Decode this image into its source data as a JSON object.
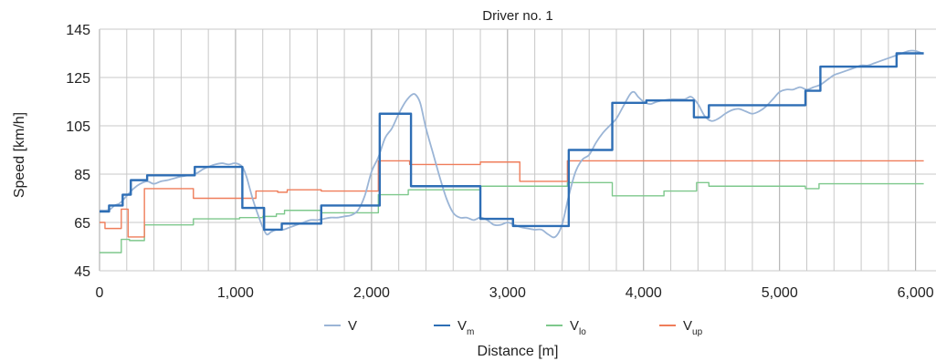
{
  "chart_data": {
    "type": "line",
    "title": "Driver no. 1",
    "xlabel": "Distance [m]",
    "ylabel": "Speed [km/h]",
    "xlim": [
      0,
      6150
    ],
    "ylim": [
      45,
      145
    ],
    "x_ticks": [
      0,
      1000,
      2000,
      3000,
      4000,
      5000,
      6000
    ],
    "x_tick_labels": [
      "0",
      "1,000",
      "2,000",
      "3,000",
      "4,000",
      "5,000",
      "6,000"
    ],
    "y_ticks": [
      45,
      65,
      85,
      105,
      125,
      145
    ],
    "y_tick_labels": [
      "45",
      "65",
      "85",
      "105",
      "125",
      "145"
    ],
    "grid": {
      "x_step": 200,
      "y_step": 20,
      "major_x_step": 1000
    },
    "legend_position": "bottom",
    "colors": {
      "V": "#9bb5d6",
      "Vm": "#2e6eb5",
      "Vlo": "#7ec88c",
      "Vup": "#ef7d5a",
      "grid": "#c8c8c8",
      "grid_major": "#a6a6a6"
    },
    "series": [
      {
        "name": "V",
        "sub": "",
        "style": "smooth",
        "points": [
          [
            0,
            70
          ],
          [
            50,
            70
          ],
          [
            80,
            70.5
          ],
          [
            110,
            72
          ],
          [
            150,
            73
          ],
          [
            200,
            76
          ],
          [
            250,
            79
          ],
          [
            300,
            81
          ],
          [
            350,
            82
          ],
          [
            400,
            81
          ],
          [
            450,
            82
          ],
          [
            500,
            82.5
          ],
          [
            600,
            84
          ],
          [
            700,
            85
          ],
          [
            760,
            87
          ],
          [
            800,
            88
          ],
          [
            850,
            89
          ],
          [
            900,
            89.5
          ],
          [
            950,
            89
          ],
          [
            1000,
            89.5
          ],
          [
            1050,
            88
          ],
          [
            1080,
            84
          ],
          [
            1100,
            80
          ],
          [
            1130,
            74
          ],
          [
            1160,
            69
          ],
          [
            1200,
            63
          ],
          [
            1230,
            60
          ],
          [
            1260,
            61
          ],
          [
            1300,
            62
          ],
          [
            1350,
            62
          ],
          [
            1400,
            63
          ],
          [
            1450,
            64
          ],
          [
            1500,
            65
          ],
          [
            1550,
            66
          ],
          [
            1600,
            66
          ],
          [
            1650,
            66.5
          ],
          [
            1700,
            67
          ],
          [
            1750,
            67
          ],
          [
            1800,
            67.5
          ],
          [
            1850,
            68
          ],
          [
            1900,
            70
          ],
          [
            1950,
            76
          ],
          [
            2000,
            86
          ],
          [
            2050,
            92
          ],
          [
            2100,
            100
          ],
          [
            2150,
            104
          ],
          [
            2200,
            110
          ],
          [
            2250,
            115
          ],
          [
            2300,
            118
          ],
          [
            2330,
            117.5
          ],
          [
            2360,
            114
          ],
          [
            2400,
            104
          ],
          [
            2450,
            94
          ],
          [
            2500,
            84
          ],
          [
            2550,
            75
          ],
          [
            2600,
            69
          ],
          [
            2650,
            67
          ],
          [
            2700,
            67
          ],
          [
            2750,
            66
          ],
          [
            2800,
            67
          ],
          [
            2850,
            66
          ],
          [
            2900,
            64
          ],
          [
            2950,
            64
          ],
          [
            3000,
            65
          ],
          [
            3050,
            64
          ],
          [
            3100,
            63
          ],
          [
            3150,
            62.5
          ],
          [
            3200,
            62
          ],
          [
            3250,
            62
          ],
          [
            3300,
            60
          ],
          [
            3350,
            59
          ],
          [
            3400,
            64
          ],
          [
            3450,
            76
          ],
          [
            3500,
            86
          ],
          [
            3550,
            91
          ],
          [
            3600,
            93
          ],
          [
            3650,
            98
          ],
          [
            3700,
            102
          ],
          [
            3750,
            105
          ],
          [
            3800,
            108
          ],
          [
            3850,
            113
          ],
          [
            3900,
            118
          ],
          [
            3930,
            119
          ],
          [
            3960,
            117
          ],
          [
            4000,
            115
          ],
          [
            4050,
            114
          ],
          [
            4100,
            115
          ],
          [
            4200,
            116
          ],
          [
            4300,
            116
          ],
          [
            4350,
            117
          ],
          [
            4400,
            114
          ],
          [
            4450,
            109
          ],
          [
            4500,
            107
          ],
          [
            4550,
            108
          ],
          [
            4600,
            110
          ],
          [
            4650,
            111.5
          ],
          [
            4700,
            112
          ],
          [
            4750,
            111
          ],
          [
            4800,
            110
          ],
          [
            4850,
            111
          ],
          [
            4900,
            113
          ],
          [
            4950,
            116
          ],
          [
            5000,
            119
          ],
          [
            5050,
            120
          ],
          [
            5100,
            120
          ],
          [
            5150,
            121
          ],
          [
            5200,
            120
          ],
          [
            5250,
            121
          ],
          [
            5300,
            122
          ],
          [
            5350,
            124
          ],
          [
            5400,
            126
          ],
          [
            5450,
            127
          ],
          [
            5500,
            128
          ],
          [
            5550,
            129
          ],
          [
            5600,
            130
          ],
          [
            5650,
            130
          ],
          [
            5700,
            131
          ],
          [
            5750,
            132
          ],
          [
            5800,
            133
          ],
          [
            5850,
            134
          ],
          [
            5900,
            135
          ],
          [
            5950,
            136
          ],
          [
            6000,
            136
          ],
          [
            6050,
            135
          ]
        ]
      },
      {
        "name": "V",
        "sub": "m",
        "style": "step",
        "points": [
          [
            0,
            69.5
          ],
          [
            70,
            69.5
          ],
          [
            70,
            72
          ],
          [
            170,
            72
          ],
          [
            170,
            76.5
          ],
          [
            230,
            76.5
          ],
          [
            230,
            82.5
          ],
          [
            350,
            82.5
          ],
          [
            350,
            84.5
          ],
          [
            700,
            84.5
          ],
          [
            700,
            88
          ],
          [
            1050,
            88
          ],
          [
            1050,
            71
          ],
          [
            1210,
            71
          ],
          [
            1210,
            62
          ],
          [
            1340,
            62
          ],
          [
            1340,
            64.5
          ],
          [
            1630,
            64.5
          ],
          [
            1630,
            72
          ],
          [
            2060,
            72
          ],
          [
            2060,
            110
          ],
          [
            2290,
            110
          ],
          [
            2290,
            80
          ],
          [
            2800,
            80
          ],
          [
            2800,
            66.5
          ],
          [
            3040,
            66.5
          ],
          [
            3040,
            63.5
          ],
          [
            3450,
            63.5
          ],
          [
            3450,
            95
          ],
          [
            3770,
            95
          ],
          [
            3770,
            114.5
          ],
          [
            4020,
            114.5
          ],
          [
            4020,
            115.5
          ],
          [
            4370,
            115.5
          ],
          [
            4370,
            108.5
          ],
          [
            4480,
            108.5
          ],
          [
            4480,
            113.5
          ],
          [
            5190,
            113.5
          ],
          [
            5190,
            119.5
          ],
          [
            5300,
            119.5
          ],
          [
            5300,
            129.5
          ],
          [
            5700,
            129.5
          ],
          [
            5700,
            129.5
          ],
          [
            5860,
            129.5
          ],
          [
            5860,
            135
          ],
          [
            6060,
            135
          ]
        ]
      },
      {
        "name": "V",
        "sub": "lo",
        "style": "step",
        "points": [
          [
            0,
            52.5
          ],
          [
            160,
            52.5
          ],
          [
            160,
            58
          ],
          [
            220,
            58
          ],
          [
            220,
            57.5
          ],
          [
            330,
            57.5
          ],
          [
            330,
            64
          ],
          [
            690,
            64
          ],
          [
            690,
            66.5
          ],
          [
            1030,
            66.5
          ],
          [
            1030,
            67
          ],
          [
            1200,
            67
          ],
          [
            1200,
            67.5
          ],
          [
            1300,
            67.5
          ],
          [
            1300,
            68.5
          ],
          [
            1360,
            68.5
          ],
          [
            1360,
            70
          ],
          [
            1630,
            70
          ],
          [
            1630,
            69
          ],
          [
            2050,
            69
          ],
          [
            2050,
            76.5
          ],
          [
            2270,
            76.5
          ],
          [
            2270,
            78.5
          ],
          [
            2800,
            78.5
          ],
          [
            2800,
            80
          ],
          [
            3440,
            80
          ],
          [
            3440,
            81.5
          ],
          [
            3770,
            81.5
          ],
          [
            3770,
            76
          ],
          [
            4020,
            76
          ],
          [
            4020,
            76
          ],
          [
            4150,
            76
          ],
          [
            4150,
            78
          ],
          [
            4390,
            78
          ],
          [
            4390,
            81.5
          ],
          [
            4480,
            81.5
          ],
          [
            4480,
            80
          ],
          [
            5190,
            80
          ],
          [
            5190,
            79
          ],
          [
            5290,
            79
          ],
          [
            5290,
            81
          ],
          [
            6060,
            81
          ]
        ]
      },
      {
        "name": "V",
        "sub": "up",
        "style": "step",
        "points": [
          [
            0,
            65
          ],
          [
            40,
            65
          ],
          [
            40,
            62.5
          ],
          [
            160,
            62.5
          ],
          [
            160,
            70.5
          ],
          [
            210,
            70.5
          ],
          [
            210,
            59
          ],
          [
            330,
            59
          ],
          [
            330,
            79
          ],
          [
            690,
            79
          ],
          [
            690,
            75
          ],
          [
            1150,
            75
          ],
          [
            1150,
            78
          ],
          [
            1310,
            78
          ],
          [
            1310,
            77.5
          ],
          [
            1380,
            77.5
          ],
          [
            1380,
            78.5
          ],
          [
            1630,
            78.5
          ],
          [
            1630,
            78
          ],
          [
            2050,
            78
          ],
          [
            2050,
            90.5
          ],
          [
            2280,
            90.5
          ],
          [
            2280,
            89
          ],
          [
            2800,
            89
          ],
          [
            2800,
            90
          ],
          [
            3090,
            90
          ],
          [
            3090,
            82
          ],
          [
            3440,
            82
          ],
          [
            3440,
            90.5
          ],
          [
            6060,
            90.5
          ]
        ]
      }
    ]
  }
}
